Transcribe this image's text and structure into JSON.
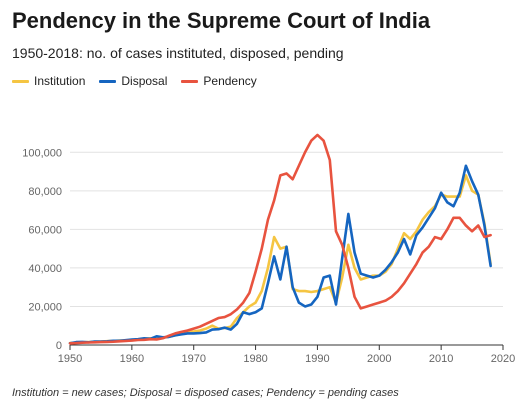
{
  "title": "Pendency in the Supreme Court of India",
  "subtitle": "1950-2018: no. of cases instituted, disposed, pending",
  "note": "Institution = new cases; Disposal = disposed cases; Pendency = pending cases",
  "legend": [
    {
      "label": "Institution",
      "color": "#f5c542"
    },
    {
      "label": "Disposal",
      "color": "#1565c0"
    },
    {
      "label": "Pendency",
      "color": "#e8533f"
    }
  ],
  "chart_data": {
    "type": "line",
    "grid": true,
    "legend_position": "top-left",
    "xlim": [
      1950,
      2020
    ],
    "ylim": [
      0,
      110000
    ],
    "x_ticks": [
      1950,
      1960,
      1970,
      1980,
      1990,
      2000,
      2010,
      2020
    ],
    "x_tick_labels": [
      "1950",
      "1960",
      "1970",
      "1980",
      "1990",
      "2000",
      "2010",
      "2020"
    ],
    "y_ticks": [
      0,
      20000,
      40000,
      60000,
      80000,
      100000
    ],
    "y_tick_labels": [
      "0",
      "20,000",
      "40,000",
      "60,000",
      "80,000",
      "100,000"
    ],
    "series": [
      {
        "name": "Institution",
        "color": "#f5c542",
        "points": [
          [
            1950,
            1000
          ],
          [
            1951,
            1200
          ],
          [
            1952,
            1400
          ],
          [
            1953,
            1500
          ],
          [
            1954,
            1700
          ],
          [
            1955,
            1800
          ],
          [
            1956,
            2000
          ],
          [
            1957,
            2100
          ],
          [
            1958,
            2300
          ],
          [
            1959,
            2400
          ],
          [
            1960,
            2600
          ],
          [
            1961,
            2900
          ],
          [
            1962,
            3200
          ],
          [
            1963,
            3500
          ],
          [
            1964,
            3300
          ],
          [
            1965,
            3700
          ],
          [
            1966,
            4300
          ],
          [
            1967,
            5000
          ],
          [
            1968,
            5800
          ],
          [
            1969,
            6500
          ],
          [
            1970,
            7000
          ],
          [
            1971,
            7500
          ],
          [
            1972,
            8500
          ],
          [
            1973,
            10000
          ],
          [
            1974,
            8500
          ],
          [
            1975,
            8800
          ],
          [
            1976,
            9500
          ],
          [
            1977,
            14000
          ],
          [
            1978,
            17000
          ],
          [
            1979,
            20000
          ],
          [
            1980,
            22000
          ],
          [
            1981,
            28000
          ],
          [
            1982,
            40000
          ],
          [
            1983,
            56000
          ],
          [
            1984,
            50000
          ],
          [
            1985,
            51000
          ],
          [
            1986,
            29000
          ],
          [
            1987,
            28000
          ],
          [
            1988,
            28000
          ],
          [
            1989,
            27500
          ],
          [
            1990,
            28000
          ],
          [
            1991,
            29000
          ],
          [
            1992,
            30000
          ],
          [
            1993,
            22000
          ],
          [
            1994,
            35000
          ],
          [
            1995,
            52000
          ],
          [
            1996,
            40000
          ],
          [
            1997,
            34000
          ],
          [
            1998,
            35000
          ],
          [
            1999,
            36000
          ],
          [
            2000,
            36000
          ],
          [
            2001,
            38000
          ],
          [
            2002,
            42000
          ],
          [
            2003,
            50000
          ],
          [
            2004,
            58000
          ],
          [
            2005,
            55000
          ],
          [
            2006,
            59000
          ],
          [
            2007,
            65000
          ],
          [
            2008,
            69000
          ],
          [
            2009,
            72000
          ],
          [
            2010,
            78000
          ],
          [
            2011,
            77000
          ],
          [
            2012,
            77000
          ],
          [
            2013,
            77000
          ],
          [
            2014,
            88000
          ],
          [
            2015,
            80000
          ],
          [
            2016,
            78000
          ],
          [
            2017,
            63000
          ],
          [
            2018,
            42000
          ]
        ]
      },
      {
        "name": "Disposal",
        "color": "#1565c0",
        "points": [
          [
            1950,
            900
          ],
          [
            1951,
            1500
          ],
          [
            1952,
            1600
          ],
          [
            1953,
            1400
          ],
          [
            1954,
            1800
          ],
          [
            1955,
            1800
          ],
          [
            1956,
            1900
          ],
          [
            1957,
            2200
          ],
          [
            1958,
            2200
          ],
          [
            1959,
            2500
          ],
          [
            1960,
            2800
          ],
          [
            1961,
            3000
          ],
          [
            1962,
            3500
          ],
          [
            1963,
            3200
          ],
          [
            1964,
            4500
          ],
          [
            1965,
            4000
          ],
          [
            1966,
            4200
          ],
          [
            1967,
            5000
          ],
          [
            1968,
            5500
          ],
          [
            1969,
            6000
          ],
          [
            1970,
            6000
          ],
          [
            1971,
            6200
          ],
          [
            1972,
            6500
          ],
          [
            1973,
            8000
          ],
          [
            1974,
            8200
          ],
          [
            1975,
            9000
          ],
          [
            1976,
            8000
          ],
          [
            1977,
            11000
          ],
          [
            1978,
            17000
          ],
          [
            1979,
            16000
          ],
          [
            1980,
            17000
          ],
          [
            1981,
            19000
          ],
          [
            1982,
            32000
          ],
          [
            1983,
            46000
          ],
          [
            1984,
            34000
          ],
          [
            1985,
            51000
          ],
          [
            1986,
            30000
          ],
          [
            1987,
            22000
          ],
          [
            1988,
            20000
          ],
          [
            1989,
            21000
          ],
          [
            1990,
            25000
          ],
          [
            1991,
            35000
          ],
          [
            1992,
            36000
          ],
          [
            1993,
            21000
          ],
          [
            1994,
            45000
          ],
          [
            1995,
            68000
          ],
          [
            1996,
            48000
          ],
          [
            1997,
            37000
          ],
          [
            1998,
            36000
          ],
          [
            1999,
            35000
          ],
          [
            2000,
            36000
          ],
          [
            2001,
            39000
          ],
          [
            2002,
            43000
          ],
          [
            2003,
            48000
          ],
          [
            2004,
            55000
          ],
          [
            2005,
            47000
          ],
          [
            2006,
            57000
          ],
          [
            2007,
            61000
          ],
          [
            2008,
            66000
          ],
          [
            2009,
            71000
          ],
          [
            2010,
            79000
          ],
          [
            2011,
            74000
          ],
          [
            2012,
            72000
          ],
          [
            2013,
            79000
          ],
          [
            2014,
            93000
          ],
          [
            2015,
            85000
          ],
          [
            2016,
            78000
          ],
          [
            2017,
            62000
          ],
          [
            2018,
            41000
          ]
        ]
      },
      {
        "name": "Pendency",
        "color": "#e8533f",
        "points": [
          [
            1950,
            800
          ],
          [
            1951,
            1000
          ],
          [
            1952,
            1200
          ],
          [
            1953,
            1300
          ],
          [
            1954,
            1400
          ],
          [
            1955,
            1500
          ],
          [
            1956,
            1600
          ],
          [
            1957,
            1700
          ],
          [
            1958,
            1900
          ],
          [
            1959,
            2100
          ],
          [
            1960,
            2300
          ],
          [
            1961,
            2600
          ],
          [
            1962,
            2700
          ],
          [
            1963,
            3000
          ],
          [
            1964,
            2900
          ],
          [
            1965,
            3500
          ],
          [
            1966,
            4800
          ],
          [
            1967,
            6000
          ],
          [
            1968,
            6800
          ],
          [
            1969,
            7500
          ],
          [
            1970,
            8500
          ],
          [
            1971,
            9500
          ],
          [
            1972,
            11000
          ],
          [
            1973,
            12500
          ],
          [
            1974,
            14000
          ],
          [
            1975,
            14500
          ],
          [
            1976,
            16000
          ],
          [
            1977,
            18500
          ],
          [
            1978,
            22000
          ],
          [
            1979,
            27000
          ],
          [
            1980,
            38000
          ],
          [
            1981,
            50000
          ],
          [
            1982,
            65000
          ],
          [
            1983,
            75000
          ],
          [
            1984,
            88000
          ],
          [
            1985,
            89000
          ],
          [
            1986,
            86000
          ],
          [
            1987,
            93000
          ],
          [
            1988,
            100000
          ],
          [
            1989,
            106000
          ],
          [
            1990,
            109000
          ],
          [
            1991,
            106000
          ],
          [
            1992,
            96000
          ],
          [
            1993,
            59000
          ],
          [
            1994,
            52000
          ],
          [
            1995,
            40000
          ],
          [
            1996,
            25000
          ],
          [
            1997,
            19000
          ],
          [
            1998,
            20000
          ],
          [
            1999,
            21000
          ],
          [
            2000,
            22000
          ],
          [
            2001,
            23000
          ],
          [
            2002,
            25000
          ],
          [
            2003,
            28000
          ],
          [
            2004,
            32000
          ],
          [
            2005,
            37000
          ],
          [
            2006,
            42000
          ],
          [
            2007,
            48000
          ],
          [
            2008,
            51000
          ],
          [
            2009,
            56000
          ],
          [
            2010,
            55000
          ],
          [
            2011,
            60000
          ],
          [
            2012,
            66000
          ],
          [
            2013,
            66000
          ],
          [
            2014,
            62000
          ],
          [
            2015,
            59000
          ],
          [
            2016,
            62000
          ],
          [
            2017,
            56000
          ],
          [
            2018,
            57000
          ]
        ]
      }
    ]
  }
}
